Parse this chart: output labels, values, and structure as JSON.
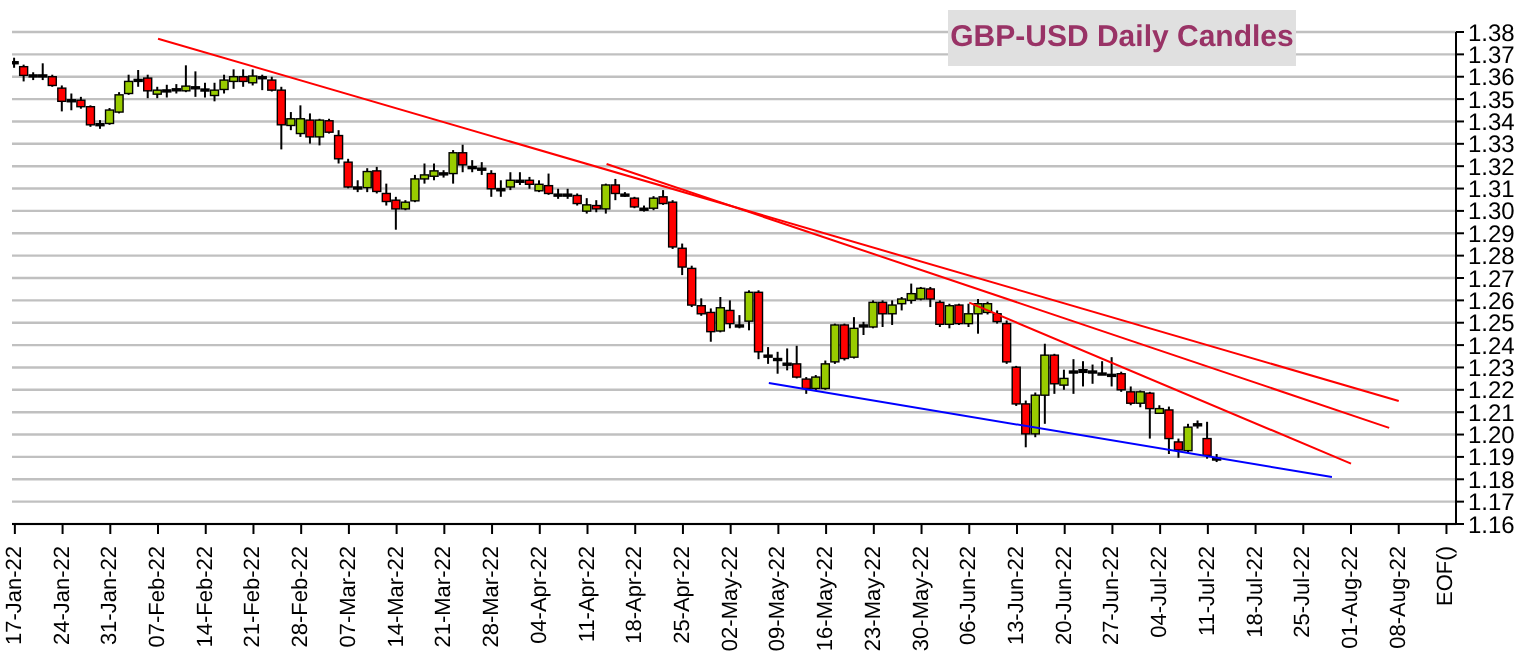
{
  "chart_data": {
    "type": "candlestick",
    "title": "GBP-USD Daily Candles",
    "categories": [
      "17-Jan-22",
      null,
      null,
      null,
      null,
      "24-Jan-22",
      null,
      null,
      null,
      null,
      "31-Jan-22",
      null,
      null,
      null,
      null,
      "07-Feb-22",
      null,
      null,
      null,
      null,
      "14-Feb-22",
      null,
      null,
      null,
      null,
      "21-Feb-22",
      null,
      null,
      null,
      null,
      "28-Feb-22",
      null,
      null,
      null,
      null,
      "07-Mar-22",
      null,
      null,
      null,
      null,
      "14-Mar-22",
      null,
      null,
      null,
      null,
      "21-Mar-22",
      null,
      null,
      null,
      null,
      "28-Mar-22",
      null,
      null,
      null,
      null,
      "04-Apr-22",
      null,
      null,
      null,
      null,
      "11-Apr-22",
      null,
      null,
      null,
      null,
      "18-Apr-22",
      null,
      null,
      null,
      null,
      "25-Apr-22",
      null,
      null,
      null,
      null,
      "02-May-22",
      null,
      null,
      null,
      null,
      "09-May-22",
      null,
      null,
      null,
      null,
      "16-May-22",
      null,
      null,
      null,
      null,
      "23-May-22",
      null,
      null,
      null,
      null,
      "30-May-22",
      null,
      null,
      null,
      null,
      "06-Jun-22",
      null,
      null,
      null,
      null,
      "13-Jun-22",
      null,
      null,
      null,
      null,
      "20-Jun-22",
      null,
      null,
      null,
      null,
      "27-Jun-22",
      null,
      null,
      null,
      null,
      "04-Jul-22",
      null,
      null,
      null,
      null,
      "11-Jul-22",
      null,
      null,
      null,
      null,
      "18-Jul-22",
      null,
      null,
      null,
      null,
      "25-Jul-22",
      null,
      null,
      null,
      null,
      "01-Aug-22",
      null,
      null,
      null,
      null,
      "08-Aug-22",
      null,
      null,
      null,
      null,
      "EOF()"
    ],
    "ohlc": [
      [
        1.3666,
        1.3685,
        1.364,
        1.3667
      ],
      [
        1.3645,
        1.3654,
        1.3579,
        1.3606
      ],
      [
        1.3606,
        1.362,
        1.3585,
        1.3608
      ],
      [
        1.3608,
        1.366,
        1.3585,
        1.3605
      ],
      [
        1.36,
        1.3609,
        1.3555,
        1.3561
      ],
      [
        1.3549,
        1.3561,
        1.3445,
        1.349
      ],
      [
        1.3495,
        1.3525,
        1.345,
        1.3497
      ],
      [
        1.3495,
        1.351,
        1.3457,
        1.3466
      ],
      [
        1.3466,
        1.3472,
        1.3376,
        1.3385
      ],
      [
        1.339,
        1.3406,
        1.3367,
        1.3388
      ],
      [
        1.3391,
        1.346,
        1.3385,
        1.3451
      ],
      [
        1.3442,
        1.3531,
        1.3436,
        1.3519
      ],
      [
        1.3525,
        1.3609,
        1.3519,
        1.3579
      ],
      [
        1.3585,
        1.363,
        1.3555,
        1.3588
      ],
      [
        1.3594,
        1.3609,
        1.3504,
        1.3537
      ],
      [
        1.3522,
        1.3555,
        1.3504,
        1.354
      ],
      [
        1.354,
        1.3564,
        1.3507,
        1.3541
      ],
      [
        1.3545,
        1.3567,
        1.3525,
        1.3546
      ],
      [
        1.3537,
        1.3651,
        1.3531,
        1.3558
      ],
      [
        1.3555,
        1.3624,
        1.351,
        1.3552
      ],
      [
        1.3545,
        1.3573,
        1.3507,
        1.3543
      ],
      [
        1.3516,
        1.3573,
        1.349,
        1.354
      ],
      [
        1.3543,
        1.3609,
        1.3525,
        1.3585
      ],
      [
        1.3579,
        1.3633,
        1.3546,
        1.36
      ],
      [
        1.36,
        1.3633,
        1.3555,
        1.3579
      ],
      [
        1.3573,
        1.3633,
        1.3561,
        1.3603
      ],
      [
        1.36,
        1.3609,
        1.354,
        1.3599
      ],
      [
        1.3585,
        1.36,
        1.3534,
        1.354
      ],
      [
        1.354,
        1.3555,
        1.3275,
        1.3385
      ],
      [
        1.3382,
        1.3442,
        1.3361,
        1.3412
      ],
      [
        1.3346,
        1.3472,
        1.3331,
        1.3412
      ],
      [
        1.3406,
        1.3436,
        1.3301,
        1.3331
      ],
      [
        1.3331,
        1.3412,
        1.3293,
        1.3406
      ],
      [
        1.3403,
        1.3412,
        1.3346,
        1.3352
      ],
      [
        1.3337,
        1.3361,
        1.3212,
        1.3233
      ],
      [
        1.3218,
        1.3233,
        1.3101,
        1.3107
      ],
      [
        1.3104,
        1.3137,
        1.3084,
        1.3107
      ],
      [
        1.3104,
        1.3191,
        1.3084,
        1.3176
      ],
      [
        1.3179,
        1.3197,
        1.3078,
        1.3087
      ],
      [
        1.3078,
        1.3122,
        1.3024,
        1.3042
      ],
      [
        1.3048,
        1.3063,
        1.2916,
        1.3009
      ],
      [
        1.3009,
        1.3048,
        1.3003,
        1.3039
      ],
      [
        1.3045,
        1.3161,
        1.3039,
        1.3143
      ],
      [
        1.3143,
        1.3212,
        1.3122,
        1.3161
      ],
      [
        1.3155,
        1.3212,
        1.3137,
        1.3179
      ],
      [
        1.3167,
        1.3182,
        1.3149,
        1.317
      ],
      [
        1.3167,
        1.3272,
        1.3122,
        1.326
      ],
      [
        1.326,
        1.3296,
        1.3173,
        1.3206
      ],
      [
        1.3198,
        1.3227,
        1.3173,
        1.3197
      ],
      [
        1.3191,
        1.3218,
        1.3161,
        1.3188
      ],
      [
        1.3167,
        1.3182,
        1.3063,
        1.3099
      ],
      [
        1.3099,
        1.3137,
        1.3063,
        1.3098
      ],
      [
        1.3107,
        1.3173,
        1.3093,
        1.3137
      ],
      [
        1.3137,
        1.3173,
        1.3116,
        1.3134
      ],
      [
        1.3137,
        1.3152,
        1.3099,
        1.3119
      ],
      [
        1.309,
        1.3137,
        1.3084,
        1.3119
      ],
      [
        1.3113,
        1.3167,
        1.3072,
        1.3078
      ],
      [
        1.3075,
        1.3099,
        1.3054,
        1.3072
      ],
      [
        1.3072,
        1.3099,
        1.3054,
        1.3075
      ],
      [
        1.3069,
        1.3078,
        1.3024,
        1.3033
      ],
      [
        1.2999,
        1.3057,
        1.2988,
        1.3027
      ],
      [
        1.3024,
        1.3048,
        1.2994,
        1.3009
      ],
      [
        1.3009,
        1.3122,
        1.2988,
        1.3116
      ],
      [
        1.3116,
        1.3143,
        1.3048,
        1.3078
      ],
      [
        1.3075,
        1.3084,
        1.3063,
        1.3072
      ],
      [
        1.3057,
        1.3063,
        1.3012,
        1.3018
      ],
      [
        1.3009,
        1.3024,
        1.2997,
        1.3012
      ],
      [
        1.3012,
        1.3066,
        1.3003,
        1.3057
      ],
      [
        1.3063,
        1.3093,
        1.3027,
        1.3033
      ],
      [
        1.3039,
        1.3048,
        1.283,
        1.2839
      ],
      [
        1.2833,
        1.2854,
        1.2713,
        1.2749
      ],
      [
        1.2743,
        1.2755,
        1.257,
        1.2579
      ],
      [
        1.2576,
        1.2609,
        1.2531,
        1.254
      ],
      [
        1.2546,
        1.2564,
        1.2415,
        1.246
      ],
      [
        1.2463,
        1.2615,
        1.2457,
        1.2567
      ],
      [
        1.2555,
        1.26,
        1.2475,
        1.2496
      ],
      [
        1.249,
        1.2534,
        1.2475,
        1.2487
      ],
      [
        1.2507,
        1.2645,
        1.2466,
        1.2636
      ],
      [
        1.2636,
        1.2645,
        1.2337,
        1.237
      ],
      [
        1.2355,
        1.2391,
        1.2316,
        1.2352
      ],
      [
        1.234,
        1.237,
        1.2272,
        1.2337
      ],
      [
        1.2319,
        1.2385,
        1.2287,
        1.2316
      ],
      [
        1.2316,
        1.2397,
        1.2251,
        1.2257
      ],
      [
        1.2248,
        1.2257,
        1.2182,
        1.2206
      ],
      [
        1.2206,
        1.2266,
        1.2197,
        1.2257
      ],
      [
        1.2206,
        1.2331,
        1.22,
        1.2316
      ],
      [
        1.2325,
        1.2496,
        1.2316,
        1.249
      ],
      [
        1.249,
        1.2496,
        1.2331,
        1.234
      ],
      [
        1.2346,
        1.2525,
        1.234,
        1.2475
      ],
      [
        1.2487,
        1.2504,
        1.2445,
        1.249
      ],
      [
        1.2481,
        1.26,
        1.2475,
        1.2591
      ],
      [
        1.2591,
        1.26,
        1.2481,
        1.254
      ],
      [
        1.254,
        1.26,
        1.249,
        1.2579
      ],
      [
        1.2585,
        1.2615,
        1.2555,
        1.2606
      ],
      [
        1.26,
        1.2675,
        1.2585,
        1.263
      ],
      [
        1.2606,
        1.266,
        1.26,
        1.2654
      ],
      [
        1.2651,
        1.266,
        1.257,
        1.2606
      ],
      [
        1.2591,
        1.26,
        1.2481,
        1.2493
      ],
      [
        1.2493,
        1.2585,
        1.2475,
        1.2576
      ],
      [
        1.2579,
        1.2585,
        1.249,
        1.2496
      ],
      [
        1.2496,
        1.2585,
        1.2481,
        1.254
      ],
      [
        1.254,
        1.2606,
        1.2451,
        1.2585
      ],
      [
        1.2546,
        1.2594,
        1.2537,
        1.2585
      ],
      [
        1.254,
        1.2555,
        1.2496,
        1.2505
      ],
      [
        1.2496,
        1.251,
        1.2316,
        1.2325
      ],
      [
        1.2301,
        1.2307,
        1.2128,
        1.2137
      ],
      [
        1.2137,
        1.2152,
        1.1943,
        1.2003
      ],
      [
        1.2003,
        1.2188,
        1.1988,
        1.2176
      ],
      [
        1.2176,
        1.2406,
        1.2048,
        1.2355
      ],
      [
        1.2355,
        1.2361,
        1.2182,
        1.2227
      ],
      [
        1.2221,
        1.229,
        1.22,
        1.2251
      ],
      [
        1.2281,
        1.2337,
        1.2182,
        1.2284
      ],
      [
        1.2278,
        1.2328,
        1.2215,
        1.229
      ],
      [
        1.2284,
        1.2313,
        1.2227,
        1.2281
      ],
      [
        1.2272,
        1.2328,
        1.2266,
        1.2275
      ],
      [
        1.2269,
        1.2346,
        1.2215,
        1.2266
      ],
      [
        1.2272,
        1.2281,
        1.2191,
        1.22
      ],
      [
        1.2191,
        1.2215,
        1.2131,
        1.214
      ],
      [
        1.214,
        1.2197,
        1.2122,
        1.2191
      ],
      [
        1.2185,
        1.2191,
        1.1982,
        1.2116
      ],
      [
        1.2095,
        1.2131,
        1.2092,
        1.2116
      ],
      [
        1.211,
        1.2125,
        1.1913,
        1.1982
      ],
      [
        1.1967,
        1.1982,
        1.1896,
        1.1931
      ],
      [
        1.1928,
        1.2048,
        1.1919,
        1.2033
      ],
      [
        1.2048,
        1.2063,
        1.2027,
        1.2045
      ],
      [
        1.1982,
        1.2057,
        1.1892,
        1.1907
      ],
      [
        1.1895,
        1.1913,
        1.1877,
        1.1892
      ],
      null,
      null,
      null,
      null,
      null,
      null,
      null,
      null,
      null,
      null,
      null,
      null,
      null,
      null,
      null,
      null,
      null,
      null,
      null,
      null,
      null,
      null,
      null,
      null
    ],
    "colors": [
      "#000000",
      "#ff0000",
      "#000000",
      "#000000",
      "#ff0000",
      "#ff0000",
      "#000000",
      "#ff0000",
      "#ff0000",
      "#000000",
      "#99cc00",
      "#99cc00",
      "#99cc00",
      "#000000",
      "#ff0000",
      "#99cc00",
      "#000000",
      "#000000",
      "#99cc00",
      "#000000",
      "#000000",
      "#99cc00",
      "#99cc00",
      "#99cc00",
      "#ff0000",
      "#99cc00",
      "#000000",
      "#ff0000",
      "#ff0000",
      "#99cc00",
      "#99cc00",
      "#ff0000",
      "#99cc00",
      "#ff0000",
      "#ff0000",
      "#ff0000",
      "#000000",
      "#99cc00",
      "#ff0000",
      "#ff0000",
      "#ff0000",
      "#99cc00",
      "#99cc00",
      "#99cc00",
      "#99cc00",
      "#000000",
      "#99cc00",
      "#ff0000",
      "#000000",
      "#000000",
      "#ff0000",
      "#000000",
      "#99cc00",
      "#000000",
      "#ff0000",
      "#99cc00",
      "#ff0000",
      "#000000",
      "#000000",
      "#ff0000",
      "#99cc00",
      "#ff0000",
      "#99cc00",
      "#ff0000",
      "#000000",
      "#ff0000",
      "#000000",
      "#99cc00",
      "#ff0000",
      "#ff0000",
      "#ff0000",
      "#ff0000",
      "#ff0000",
      "#ff0000",
      "#99cc00",
      "#ff0000",
      "#000000",
      "#99cc00",
      "#ff0000",
      "#000000",
      "#000000",
      "#000000",
      "#ff0000",
      "#ff0000",
      "#99cc00",
      "#99cc00",
      "#99cc00",
      "#ff0000",
      "#99cc00",
      "#000000",
      "#99cc00",
      "#ff0000",
      "#99cc00",
      "#99cc00",
      "#99cc00",
      "#99cc00",
      "#ff0000",
      "#ff0000",
      "#99cc00",
      "#ff0000",
      "#99cc00",
      "#99cc00",
      "#99cc00",
      "#ff0000",
      "#ff0000",
      "#ff0000",
      "#ff0000",
      "#99cc00",
      "#99cc00",
      "#ff0000",
      "#99cc00",
      "#000000",
      "#000000",
      "#000000",
      "#000000",
      "#000000",
      "#ff0000",
      "#ff0000",
      "#99cc00",
      "#ff0000",
      "#99cc00",
      "#ff0000",
      "#ff0000",
      "#99cc00",
      "#000000",
      "#ff0000",
      "#000000",
      null,
      null,
      null,
      null,
      null,
      null,
      null,
      null,
      null,
      null,
      null,
      null,
      null,
      null,
      null,
      null,
      null,
      null,
      null,
      null,
      null,
      null,
      null,
      null
    ],
    "series": [
      {
        "type": "line",
        "color": "#ff0000",
        "values": [
          null,
          null,
          null,
          null,
          null,
          null,
          null,
          null,
          null,
          null,
          null,
          null,
          null,
          null,
          null,
          1.377,
          null,
          null,
          null,
          null,
          null,
          null,
          null,
          null,
          null,
          null,
          null,
          null,
          null,
          null,
          null,
          null,
          null,
          null,
          null,
          null,
          null,
          null,
          null,
          null,
          null,
          null,
          null,
          null,
          null,
          null,
          null,
          null,
          null,
          null,
          null,
          null,
          null,
          null,
          null,
          null,
          null,
          null,
          null,
          null,
          null,
          null,
          null,
          null,
          null,
          null,
          null,
          null,
          null,
          null,
          null,
          null,
          null,
          null,
          null,
          null,
          null,
          null,
          null,
          null,
          null,
          null,
          null,
          null,
          null,
          null,
          null,
          null,
          null,
          null,
          null,
          null,
          null,
          null,
          null,
          null,
          null,
          null,
          null,
          null,
          null,
          null,
          null,
          null,
          null,
          null,
          null,
          null,
          null,
          null,
          null,
          null,
          null,
          null,
          null,
          null,
          null,
          null,
          null,
          null,
          null,
          null,
          null,
          null,
          null,
          null,
          null,
          null,
          null,
          null,
          null,
          null,
          null,
          null,
          null,
          null,
          null,
          null,
          null,
          null,
          null,
          null,
          null,
          null,
          null,
          1.215,
          null,
          null,
          null,
          null,
          null
        ]
      },
      {
        "type": "line",
        "color": "#ff0000",
        "values": [
          null,
          null,
          null,
          null,
          null,
          null,
          null,
          null,
          null,
          null,
          null,
          null,
          null,
          null,
          null,
          null,
          null,
          null,
          null,
          null,
          null,
          null,
          null,
          null,
          null,
          null,
          null,
          null,
          null,
          null,
          null,
          null,
          null,
          null,
          null,
          null,
          null,
          null,
          null,
          null,
          null,
          null,
          null,
          null,
          null,
          null,
          null,
          null,
          null,
          null,
          null,
          null,
          null,
          null,
          null,
          null,
          null,
          null,
          null,
          null,
          null,
          null,
          1.321,
          null,
          null,
          null,
          null,
          null,
          null,
          null,
          null,
          null,
          null,
          null,
          null,
          null,
          null,
          null,
          null,
          null,
          null,
          null,
          null,
          null,
          null,
          null,
          null,
          null,
          null,
          null,
          null,
          null,
          null,
          null,
          null,
          null,
          null,
          null,
          null,
          null,
          null,
          null,
          null,
          null,
          null,
          null,
          null,
          null,
          null,
          null,
          null,
          null,
          null,
          null,
          null,
          null,
          null,
          null,
          null,
          null,
          null,
          null,
          null,
          null,
          null,
          null,
          null,
          null,
          null,
          null,
          null,
          null,
          null,
          null,
          null,
          null,
          null,
          null,
          null,
          null,
          null,
          null,
          null,
          null,
          1.203,
          null,
          null,
          null,
          null,
          null,
          null
        ]
      },
      {
        "type": "line",
        "color": "#ff0000",
        "values": [
          null,
          null,
          null,
          null,
          null,
          null,
          null,
          null,
          null,
          null,
          null,
          null,
          null,
          null,
          null,
          null,
          null,
          null,
          null,
          null,
          null,
          null,
          null,
          null,
          null,
          null,
          null,
          null,
          null,
          null,
          null,
          null,
          null,
          null,
          null,
          null,
          null,
          null,
          null,
          null,
          null,
          null,
          null,
          null,
          null,
          null,
          null,
          null,
          null,
          null,
          null,
          null,
          null,
          null,
          null,
          null,
          null,
          null,
          null,
          null,
          null,
          null,
          null,
          null,
          null,
          null,
          null,
          null,
          null,
          null,
          null,
          null,
          null,
          null,
          null,
          null,
          null,
          null,
          null,
          null,
          null,
          null,
          null,
          null,
          null,
          null,
          null,
          null,
          null,
          null,
          null,
          null,
          null,
          null,
          null,
          null,
          null,
          null,
          null,
          null,
          1.259,
          null,
          null,
          null,
          null,
          null,
          null,
          null,
          null,
          null,
          null,
          null,
          null,
          null,
          null,
          null,
          null,
          null,
          null,
          null,
          null,
          null,
          null,
          null,
          null,
          null,
          null,
          null,
          null,
          null,
          null,
          null,
          null,
          null,
          null,
          null,
          null,
          null,
          null,
          null,
          1.187,
          null,
          null,
          null,
          null,
          null,
          null,
          null,
          null,
          null,
          null
        ]
      },
      {
        "type": "line",
        "color": "#0000ff",
        "values": [
          null,
          null,
          null,
          null,
          null,
          null,
          null,
          null,
          null,
          null,
          null,
          null,
          null,
          null,
          null,
          null,
          null,
          null,
          null,
          null,
          null,
          null,
          null,
          null,
          null,
          null,
          null,
          null,
          null,
          null,
          null,
          null,
          null,
          null,
          null,
          null,
          null,
          null,
          null,
          null,
          null,
          null,
          null,
          null,
          null,
          null,
          null,
          null,
          null,
          null,
          null,
          null,
          null,
          null,
          null,
          null,
          null,
          null,
          null,
          null,
          null,
          null,
          null,
          null,
          null,
          null,
          null,
          null,
          null,
          null,
          null,
          null,
          null,
          null,
          null,
          null,
          null,
          null,
          null,
          1.223,
          null,
          null,
          null,
          null,
          null,
          null,
          null,
          null,
          null,
          null,
          null,
          null,
          null,
          null,
          null,
          null,
          null,
          null,
          null,
          null,
          null,
          null,
          null,
          null,
          null,
          null,
          null,
          null,
          null,
          null,
          null,
          null,
          null,
          null,
          null,
          null,
          null,
          null,
          null,
          null,
          null,
          null,
          null,
          null,
          null,
          null,
          null,
          null,
          null,
          null,
          null,
          null,
          null,
          null,
          null,
          null,
          null,
          null,
          1.181,
          null,
          null,
          null,
          null,
          null,
          null,
          null,
          null,
          null,
          null,
          null,
          null
        ]
      }
    ],
    "ylim": [
      1.16,
      1.38
    ],
    "yticks": [
      1.16,
      1.17,
      1.18,
      1.19,
      {
        "value": 1.2,
        "label": "1.20"
      },
      1.21,
      1.22,
      1.23,
      1.24,
      1.25,
      1.26,
      1.27,
      1.28,
      1.29,
      {
        "value": 1.3,
        "label": "1.30"
      },
      1.31,
      1.32,
      1.33,
      1.34,
      1.35,
      1.36,
      1.37,
      1.38
    ],
    "grid": "y"
  }
}
